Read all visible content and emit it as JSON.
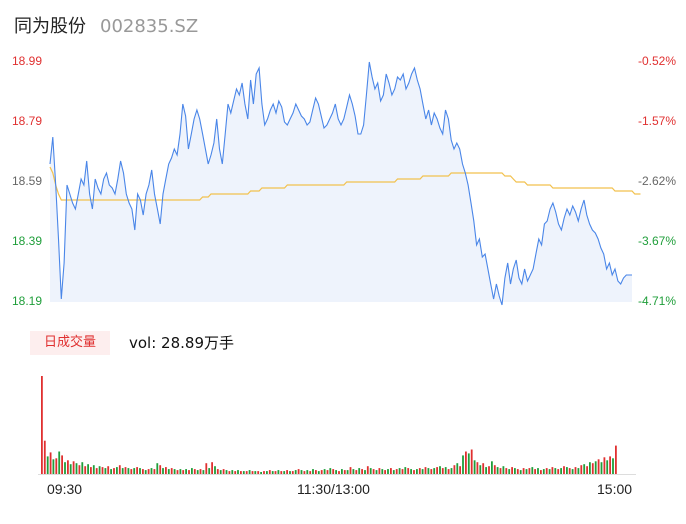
{
  "header": {
    "name": "同为股份",
    "code": "002835.SZ"
  },
  "colors": {
    "up": "#e03030",
    "down": "#1f9e3a",
    "price_line": "#4a86e8",
    "avg_line": "#f2c14e",
    "area_fill": "#eef3fc"
  },
  "volume": {
    "tag": "日成交量",
    "readout": "vol: 28.89万手"
  },
  "chart_data": {
    "type": "line",
    "title": "",
    "x_ticks": [
      "09:30",
      "11:30/13:00",
      "15:00"
    ],
    "y_ticks_left": [
      "18.99",
      "18.79",
      "18.59",
      "18.39",
      "18.19"
    ],
    "y_ticks_right": [
      "-0.52%",
      "-1.57%",
      "-2.62%",
      "-3.67%",
      "-4.71%"
    ],
    "ylim": [
      18.19,
      18.99
    ],
    "series": [
      {
        "values": [
          18.65,
          18.74,
          18.58,
          18.4,
          18.2,
          18.32,
          18.58,
          18.55,
          18.52,
          18.5,
          18.55,
          18.6,
          18.58,
          18.66,
          18.55,
          18.5,
          18.6,
          18.57,
          18.55,
          18.6,
          18.62,
          18.58,
          18.57,
          18.55,
          18.6,
          18.66,
          18.62,
          18.55,
          18.52,
          18.5,
          18.43,
          18.55,
          18.53,
          18.48,
          18.55,
          18.58,
          18.63,
          18.55,
          18.5,
          18.45,
          18.55,
          18.6,
          18.65,
          18.67,
          18.7,
          18.68,
          18.75,
          18.85,
          18.81,
          18.7,
          18.75,
          18.8,
          18.83,
          18.8,
          18.75,
          18.7,
          18.65,
          18.68,
          18.72,
          18.8,
          18.7,
          18.65,
          18.75,
          18.85,
          18.82,
          18.86,
          18.9,
          18.88,
          18.92,
          18.85,
          18.8,
          18.93,
          18.85,
          18.95,
          18.97,
          18.85,
          18.78,
          18.8,
          18.83,
          18.85,
          18.82,
          18.86,
          18.84,
          18.79,
          18.78,
          18.8,
          18.82,
          18.85,
          18.83,
          18.81,
          18.8,
          18.78,
          18.79,
          18.83,
          18.87,
          18.85,
          18.81,
          18.77,
          18.78,
          18.8,
          18.82,
          18.85,
          18.8,
          18.78,
          18.8,
          18.84,
          18.88,
          18.85,
          18.81,
          18.75,
          18.75,
          18.78,
          18.88,
          18.99,
          18.94,
          18.9,
          18.92,
          18.86,
          18.88,
          18.95,
          18.92,
          18.88,
          18.9,
          18.94,
          18.93,
          18.95,
          18.9,
          18.92,
          18.95,
          18.97,
          18.93,
          18.9,
          18.85,
          18.8,
          18.83,
          18.78,
          18.82,
          18.8,
          18.77,
          18.75,
          18.83,
          18.8,
          18.73,
          18.7,
          18.72,
          18.7,
          18.65,
          18.62,
          18.58,
          18.52,
          18.46,
          18.38,
          18.4,
          18.34,
          18.35,
          18.3,
          18.25,
          18.2,
          18.25,
          18.21,
          18.18,
          18.27,
          18.32,
          18.25,
          18.3,
          18.33,
          18.27,
          18.25,
          18.3,
          18.26,
          18.28,
          18.3,
          18.35,
          18.4,
          18.38,
          18.45,
          18.46,
          18.5,
          18.52,
          18.49,
          18.45,
          18.43,
          18.47,
          18.5,
          18.48,
          18.51,
          18.49,
          18.46,
          18.5,
          18.53,
          18.48,
          18.45,
          18.43,
          18.42,
          18.4,
          18.37,
          18.35,
          18.3,
          18.32,
          18.28,
          18.3,
          18.26,
          18.25,
          18.27,
          18.28,
          18.28,
          18.28
        ]
      },
      {
        "values": [
          18.64,
          18.62,
          18.58,
          18.55,
          18.53,
          18.53,
          18.53,
          18.53,
          18.53,
          18.53,
          18.53,
          18.53,
          18.53,
          18.53,
          18.53,
          18.53,
          18.53,
          18.53,
          18.53,
          18.53,
          18.53,
          18.53,
          18.53,
          18.53,
          18.53,
          18.53,
          18.53,
          18.53,
          18.53,
          18.53,
          18.53,
          18.53,
          18.53,
          18.53,
          18.53,
          18.53,
          18.53,
          18.53,
          18.53,
          18.53,
          18.53,
          18.53,
          18.53,
          18.53,
          18.53,
          18.53,
          18.53,
          18.53,
          18.53,
          18.53,
          18.53,
          18.53,
          18.53,
          18.53,
          18.54,
          18.54,
          18.54,
          18.55,
          18.55,
          18.55,
          18.55,
          18.55,
          18.55,
          18.55,
          18.55,
          18.55,
          18.55,
          18.55,
          18.55,
          18.55,
          18.55,
          18.56,
          18.56,
          18.56,
          18.56,
          18.57,
          18.57,
          18.57,
          18.57,
          18.57,
          18.57,
          18.57,
          18.57,
          18.57,
          18.58,
          18.58,
          18.58,
          18.58,
          18.58,
          18.58,
          18.58,
          18.58,
          18.58,
          18.58,
          18.58,
          18.58,
          18.58,
          18.58,
          18.58,
          18.58,
          18.58,
          18.58,
          18.58,
          18.58,
          18.58,
          18.59,
          18.59,
          18.59,
          18.59,
          18.59,
          18.59,
          18.59,
          18.59,
          18.59,
          18.59,
          18.59,
          18.59,
          18.59,
          18.59,
          18.59,
          18.59,
          18.59,
          18.59,
          18.6,
          18.6,
          18.6,
          18.6,
          18.6,
          18.6,
          18.6,
          18.6,
          18.6,
          18.61,
          18.61,
          18.61,
          18.61,
          18.61,
          18.61,
          18.61,
          18.61,
          18.61,
          18.61,
          18.62,
          18.62,
          18.62,
          18.62,
          18.62,
          18.62,
          18.62,
          18.62,
          18.62,
          18.62,
          18.62,
          18.62,
          18.62,
          18.62,
          18.62,
          18.62,
          18.62,
          18.62,
          18.62,
          18.61,
          18.61,
          18.61,
          18.6,
          18.59,
          18.59,
          18.59,
          18.59,
          18.58,
          18.58,
          18.58,
          18.58,
          18.58,
          18.58,
          18.58,
          18.58,
          18.58,
          18.57,
          18.57,
          18.57,
          18.57,
          18.57,
          18.57,
          18.57,
          18.57,
          18.57,
          18.57,
          18.57,
          18.57,
          18.57,
          18.57,
          18.57,
          18.57,
          18.57,
          18.57,
          18.57,
          18.57,
          18.57,
          18.57,
          18.56,
          18.56,
          18.56,
          18.56,
          18.56,
          18.56,
          18.56,
          18.55,
          18.55,
          18.55
        ]
      }
    ],
    "volume_bars": [
      [
        1.0,
        "up"
      ],
      [
        0.34,
        "up"
      ],
      [
        0.18,
        "down"
      ],
      [
        0.22,
        "up"
      ],
      [
        0.15,
        "down"
      ],
      [
        0.16,
        "up"
      ],
      [
        0.23,
        "down"
      ],
      [
        0.19,
        "up"
      ],
      [
        0.12,
        "down"
      ],
      [
        0.14,
        "up"
      ],
      [
        0.1,
        "down"
      ],
      [
        0.13,
        "up"
      ],
      [
        0.11,
        "down"
      ],
      [
        0.09,
        "up"
      ],
      [
        0.12,
        "down"
      ],
      [
        0.08,
        "up"
      ],
      [
        0.1,
        "down"
      ],
      [
        0.07,
        "up"
      ],
      [
        0.09,
        "down"
      ],
      [
        0.06,
        "up"
      ],
      [
        0.08,
        "down"
      ],
      [
        0.07,
        "up"
      ],
      [
        0.06,
        "down"
      ],
      [
        0.08,
        "up"
      ],
      [
        0.05,
        "down"
      ],
      [
        0.06,
        "up"
      ],
      [
        0.07,
        "down"
      ],
      [
        0.09,
        "up"
      ],
      [
        0.06,
        "down"
      ],
      [
        0.07,
        "up"
      ],
      [
        0.06,
        "down"
      ],
      [
        0.05,
        "up"
      ],
      [
        0.06,
        "down"
      ],
      [
        0.07,
        "up"
      ],
      [
        0.06,
        "down"
      ],
      [
        0.05,
        "up"
      ],
      [
        0.04,
        "down"
      ],
      [
        0.05,
        "up"
      ],
      [
        0.06,
        "down"
      ],
      [
        0.05,
        "up"
      ],
      [
        0.11,
        "down"
      ],
      [
        0.09,
        "up"
      ],
      [
        0.06,
        "down"
      ],
      [
        0.07,
        "up"
      ],
      [
        0.05,
        "down"
      ],
      [
        0.06,
        "up"
      ],
      [
        0.05,
        "down"
      ],
      [
        0.04,
        "up"
      ],
      [
        0.05,
        "down"
      ],
      [
        0.04,
        "up"
      ],
      [
        0.05,
        "down"
      ],
      [
        0.04,
        "up"
      ],
      [
        0.06,
        "down"
      ],
      [
        0.05,
        "up"
      ],
      [
        0.04,
        "down"
      ],
      [
        0.05,
        "up"
      ],
      [
        0.04,
        "down"
      ],
      [
        0.11,
        "up"
      ],
      [
        0.06,
        "down"
      ],
      [
        0.12,
        "up"
      ],
      [
        0.08,
        "down"
      ],
      [
        0.05,
        "up"
      ],
      [
        0.04,
        "down"
      ],
      [
        0.05,
        "up"
      ],
      [
        0.04,
        "down"
      ],
      [
        0.03,
        "up"
      ],
      [
        0.04,
        "down"
      ],
      [
        0.03,
        "up"
      ],
      [
        0.04,
        "down"
      ],
      [
        0.03,
        "up"
      ],
      [
        0.03,
        "down"
      ],
      [
        0.03,
        "up"
      ],
      [
        0.04,
        "down"
      ],
      [
        0.03,
        "up"
      ],
      [
        0.03,
        "down"
      ],
      [
        0.03,
        "up"
      ],
      [
        0.02,
        "down"
      ],
      [
        0.03,
        "up"
      ],
      [
        0.03,
        "down"
      ],
      [
        0.04,
        "up"
      ],
      [
        0.03,
        "down"
      ],
      [
        0.03,
        "up"
      ],
      [
        0.04,
        "down"
      ],
      [
        0.03,
        "up"
      ],
      [
        0.03,
        "down"
      ],
      [
        0.04,
        "up"
      ],
      [
        0.03,
        "down"
      ],
      [
        0.03,
        "up"
      ],
      [
        0.04,
        "down"
      ],
      [
        0.05,
        "up"
      ],
      [
        0.04,
        "down"
      ],
      [
        0.03,
        "up"
      ],
      [
        0.04,
        "down"
      ],
      [
        0.03,
        "up"
      ],
      [
        0.05,
        "down"
      ],
      [
        0.04,
        "up"
      ],
      [
        0.03,
        "down"
      ],
      [
        0.04,
        "up"
      ],
      [
        0.05,
        "down"
      ],
      [
        0.04,
        "up"
      ],
      [
        0.06,
        "down"
      ],
      [
        0.05,
        "up"
      ],
      [
        0.04,
        "down"
      ],
      [
        0.03,
        "up"
      ],
      [
        0.05,
        "down"
      ],
      [
        0.04,
        "up"
      ],
      [
        0.04,
        "down"
      ],
      [
        0.07,
        "up"
      ],
      [
        0.05,
        "down"
      ],
      [
        0.04,
        "up"
      ],
      [
        0.06,
        "down"
      ],
      [
        0.05,
        "up"
      ],
      [
        0.04,
        "down"
      ],
      [
        0.08,
        "up"
      ],
      [
        0.06,
        "down"
      ],
      [
        0.05,
        "up"
      ],
      [
        0.04,
        "down"
      ],
      [
        0.06,
        "up"
      ],
      [
        0.05,
        "down"
      ],
      [
        0.04,
        "up"
      ],
      [
        0.05,
        "down"
      ],
      [
        0.06,
        "up"
      ],
      [
        0.04,
        "down"
      ],
      [
        0.05,
        "up"
      ],
      [
        0.06,
        "down"
      ],
      [
        0.05,
        "up"
      ],
      [
        0.07,
        "down"
      ],
      [
        0.06,
        "up"
      ],
      [
        0.05,
        "down"
      ],
      [
        0.04,
        "up"
      ],
      [
        0.05,
        "down"
      ],
      [
        0.06,
        "up"
      ],
      [
        0.05,
        "down"
      ],
      [
        0.07,
        "up"
      ],
      [
        0.06,
        "down"
      ],
      [
        0.05,
        "up"
      ],
      [
        0.06,
        "down"
      ],
      [
        0.07,
        "up"
      ],
      [
        0.08,
        "down"
      ],
      [
        0.06,
        "up"
      ],
      [
        0.07,
        "down"
      ],
      [
        0.05,
        "up"
      ],
      [
        0.06,
        "down"
      ],
      [
        0.09,
        "up"
      ],
      [
        0.11,
        "down"
      ],
      [
        0.08,
        "up"
      ],
      [
        0.19,
        "down"
      ],
      [
        0.23,
        "up"
      ],
      [
        0.21,
        "down"
      ],
      [
        0.25,
        "up"
      ],
      [
        0.14,
        "down"
      ],
      [
        0.12,
        "up"
      ],
      [
        0.09,
        "down"
      ],
      [
        0.11,
        "up"
      ],
      [
        0.07,
        "down"
      ],
      [
        0.08,
        "up"
      ],
      [
        0.13,
        "down"
      ],
      [
        0.09,
        "up"
      ],
      [
        0.07,
        "down"
      ],
      [
        0.06,
        "up"
      ],
      [
        0.08,
        "down"
      ],
      [
        0.06,
        "up"
      ],
      [
        0.05,
        "down"
      ],
      [
        0.07,
        "up"
      ],
      [
        0.06,
        "down"
      ],
      [
        0.05,
        "up"
      ],
      [
        0.04,
        "down"
      ],
      [
        0.06,
        "up"
      ],
      [
        0.05,
        "down"
      ],
      [
        0.06,
        "up"
      ],
      [
        0.07,
        "down"
      ],
      [
        0.05,
        "up"
      ],
      [
        0.06,
        "down"
      ],
      [
        0.04,
        "up"
      ],
      [
        0.05,
        "down"
      ],
      [
        0.06,
        "up"
      ],
      [
        0.05,
        "down"
      ],
      [
        0.07,
        "up"
      ],
      [
        0.06,
        "down"
      ],
      [
        0.05,
        "up"
      ],
      [
        0.06,
        "down"
      ],
      [
        0.08,
        "up"
      ],
      [
        0.07,
        "down"
      ],
      [
        0.06,
        "up"
      ],
      [
        0.05,
        "down"
      ],
      [
        0.07,
        "up"
      ],
      [
        0.06,
        "down"
      ],
      [
        0.09,
        "up"
      ],
      [
        0.1,
        "down"
      ],
      [
        0.08,
        "up"
      ],
      [
        0.12,
        "down"
      ],
      [
        0.11,
        "up"
      ],
      [
        0.13,
        "down"
      ],
      [
        0.15,
        "up"
      ],
      [
        0.12,
        "down"
      ],
      [
        0.17,
        "up"
      ],
      [
        0.14,
        "down"
      ],
      [
        0.18,
        "up"
      ],
      [
        0.16,
        "down"
      ],
      [
        0.29,
        "up"
      ]
    ]
  }
}
